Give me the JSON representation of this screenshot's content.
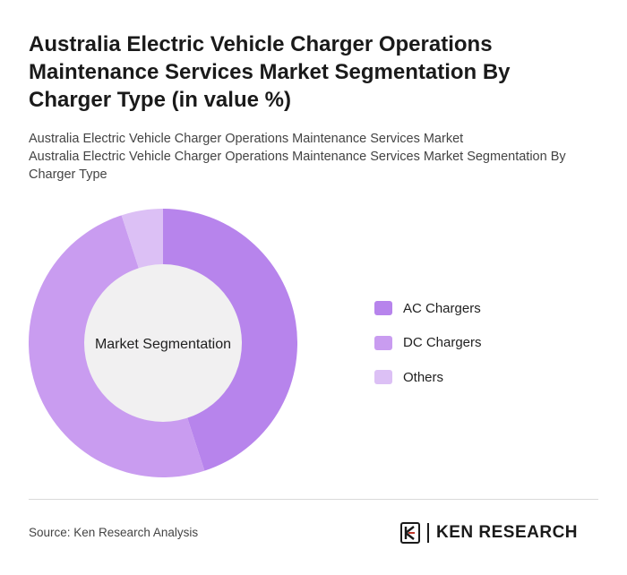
{
  "title": "Australia Electric Vehicle Charger Operations Maintenance Services Market Segmentation By Charger Type (in value %)",
  "subtitle_1": "Australia Electric Vehicle Charger Operations Maintenance Services Market",
  "subtitle_2": "Australia Electric Vehicle Charger Operations Maintenance Services Market Segmentation By Charger Type",
  "source": "Source: Ken Research Analysis",
  "brand": "KEN RESEARCH",
  "chart_data": {
    "type": "pie",
    "center_label": "Market Segmentation",
    "categories": [
      "AC Chargers",
      "DC Chargers",
      "Others"
    ],
    "values": [
      45,
      50,
      5
    ],
    "colors": [
      "#b784ec",
      "#c99cf0",
      "#dcc0f5"
    ],
    "legend_position": "right"
  }
}
